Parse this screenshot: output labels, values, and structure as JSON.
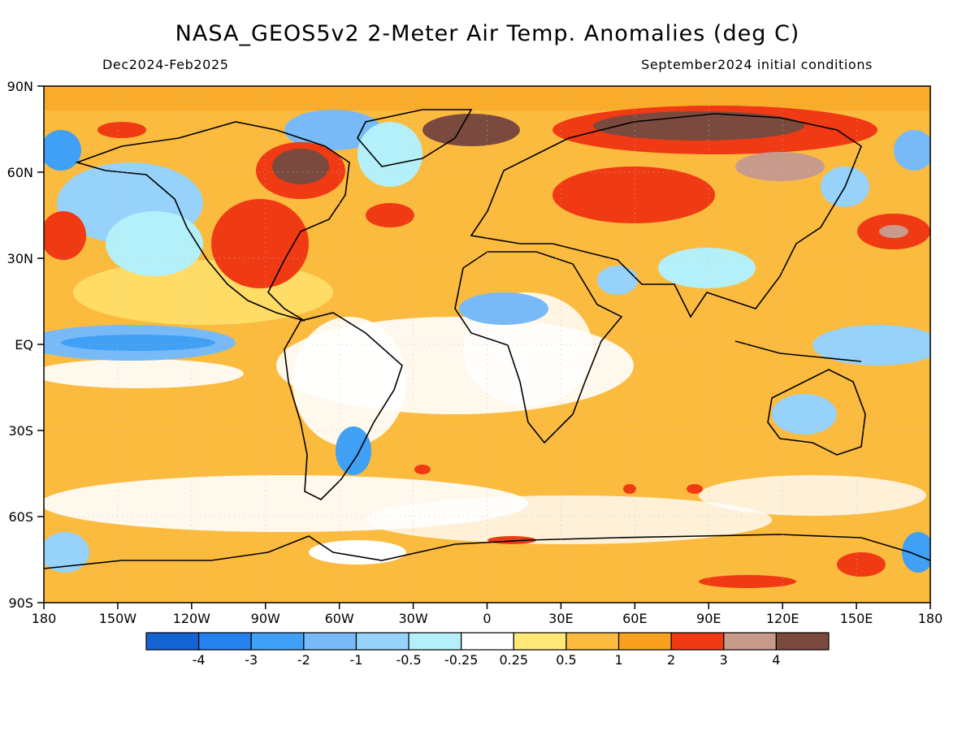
{
  "header": {
    "title": "NASA_GEOS5v2 2-Meter Air Temp. Anomalies (deg C)",
    "subtitle_left": "Dec2024-Feb2025",
    "subtitle_right": "September2024 initial conditions"
  },
  "map": {
    "lat_labels": [
      "90N",
      "60N",
      "30N",
      "EQ",
      "30S",
      "60S",
      "90S"
    ],
    "lon_labels": [
      "180",
      "150W",
      "120W",
      "90W",
      "60W",
      "30W",
      "0",
      "30E",
      "60E",
      "90E",
      "120E",
      "150E",
      "180"
    ],
    "background_color": "#fbbb3e"
  },
  "colorbar": {
    "colors": [
      "#1463d2",
      "#2382ee",
      "#3fa0f5",
      "#78b9f7",
      "#96d2fa",
      "#b4f0fa",
      "#ffffff",
      "#ffe978",
      "#fbbb3e",
      "#f9a11f",
      "#f03a14",
      "#c89a8c",
      "#7b4a3e"
    ],
    "labels": [
      "-4",
      "-3",
      "-2",
      "-1",
      "-0.5",
      "-0.25",
      "0.25",
      "0.5",
      "1",
      "2",
      "3",
      "4"
    ]
  }
}
